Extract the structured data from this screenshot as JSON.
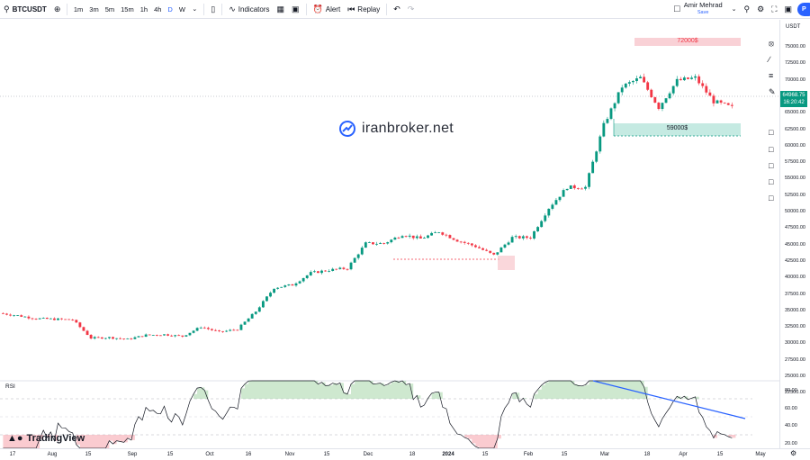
{
  "toolbar": {
    "symbol": "BTCUSDT",
    "timeframes": [
      "1m",
      "3m",
      "5m",
      "15m",
      "1h",
      "4h",
      "D",
      "W"
    ],
    "active_timeframe": "D",
    "indicators_label": "Indicators",
    "alert_label": "Alert",
    "replay_label": "Replay",
    "user_name": "Amir Mehrad",
    "save_label": "Save",
    "publish_label": "P"
  },
  "price_scale": {
    "currency": "USDT",
    "ticks": [
      "75000.00",
      "72500.00",
      "70000.00",
      "67500.00",
      "65000.00",
      "62500.00",
      "60000.00",
      "57500.00",
      "55000.00",
      "52500.00",
      "50000.00",
      "47500.00",
      "45000.00",
      "42500.00",
      "40000.00",
      "37500.00",
      "35000.00",
      "32500.00",
      "30000.00",
      "27500.00",
      "25000.00",
      "22500.00"
    ],
    "rsi_ticks": [
      "80.00",
      "60.00",
      "40.00",
      "20.00"
    ],
    "last_price": "64968.75",
    "countdown": "16:20:42",
    "last_price_color": "#089981"
  },
  "time_axis": {
    "ticks": [
      "17",
      "Aug",
      "15",
      "Sep",
      "15",
      "Oct",
      "16",
      "Nov",
      "15",
      "Dec",
      "18",
      "2024",
      "15",
      "Feb",
      "15",
      "Mar",
      "18",
      "Apr",
      "15",
      "May"
    ]
  },
  "annotations": {
    "top_zone": "72000$",
    "bottom_zone": "59000$",
    "top_zone_color": "#f8c6cc",
    "bottom_zone_color": "#bfe8df"
  },
  "watermark": "iranbroker.net",
  "rsi_label": "RSI",
  "branding": "TradingView",
  "colors": {
    "bull": "#089981",
    "bear": "#f23645",
    "rsi_line": "#131722",
    "trendline": "#2962ff"
  },
  "chart_data": {
    "type": "candlestick",
    "symbol": "BTCUSDT",
    "interval": "D",
    "ylim": [
      22500,
      76000
    ],
    "x": [
      "Jul 15",
      "Jul 22",
      "Jul 29",
      "Aug 05",
      "Aug 12",
      "Aug 19",
      "Aug 26",
      "Sep 02",
      "Sep 09",
      "Sep 16",
      "Sep 23",
      "Sep 30",
      "Oct 07",
      "Oct 14",
      "Oct 21",
      "Oct 28",
      "Nov 04",
      "Nov 11",
      "Nov 18",
      "Nov 25",
      "Dec 02",
      "Dec 09",
      "Dec 16",
      "Dec 23",
      "Dec 30",
      "Jan 06",
      "Jan 13",
      "Jan 20",
      "Jan 27",
      "Feb 03",
      "Feb 10",
      "Feb 17",
      "Feb 24",
      "Mar 02",
      "Mar 09",
      "Mar 16",
      "Mar 23",
      "Mar 30",
      "Apr 06",
      "Apr 13",
      "Apr 20"
    ],
    "close": [
      30200,
      29800,
      29300,
      29200,
      29100,
      26000,
      26100,
      25800,
      26500,
      26600,
      26300,
      27900,
      27000,
      27500,
      30500,
      34500,
      35000,
      37000,
      37500,
      37800,
      42000,
      42000,
      43500,
      42800,
      44000,
      42500,
      41500,
      40000,
      43000,
      43000,
      48000,
      51500,
      51500,
      62000,
      68500,
      70000,
      65000,
      69500,
      70000,
      66000,
      64968
    ]
  }
}
